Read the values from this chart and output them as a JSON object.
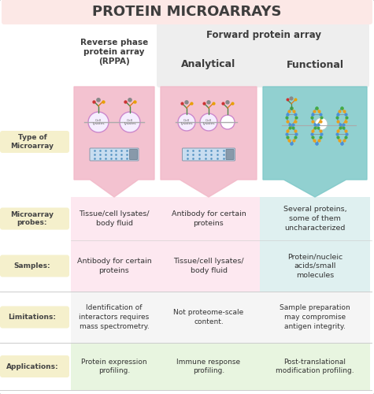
{
  "title": "PROTEIN MICROARRAYS",
  "col_headers": {
    "rppa": "Reverse phase\nprotein array\n(RPPA)",
    "forward": "Forward protein array",
    "analytical": "Analytical",
    "functional": "Functional"
  },
  "row_labels": {
    "type": "Type of\nMicroarray",
    "probes": "Microarray\nprobes:",
    "samples": "Samples:",
    "limitations": "Limitations:",
    "applications": "Applications:"
  },
  "cell_data": {
    "probes_rppa": "Tissue/cell lysates/\nbody fluid",
    "probes_analytical": "Antibody for certain\nproteins",
    "probes_functional": "Several proteins,\nsome of them\nuncharacterized",
    "samples_rppa": "Antibody for certain\nproteins",
    "samples_analytical": "Tissue/cell lysates/\nbody fluid",
    "samples_functional": "Protein/nucleic\nacids/small\nmolecules",
    "limitations_rppa": "Identification of\ninteractors requires\nmass spectrometry.",
    "limitations_analytical": "Not proteome-scale\ncontent.",
    "limitations_functional": "Sample preparation\nmay compromise\nantigen integrity.",
    "applications_rppa": "Protein expression\nprofiling.",
    "applications_analytical": "Immune response\nprofiling.",
    "applications_functional": "Post-translational\nmodification profiling."
  },
  "colors": {
    "bg": "#ffffff",
    "title_bg": "#fce8e6",
    "title_color": "#3d3d3d",
    "header_text": "#3d3d3d",
    "rppa_arrow": "#f2b8c8",
    "analytical_arrow": "#f2b8c8",
    "functional_arrow": "#7ec8c8",
    "rppa_col_bg": "#fde8f0",
    "analytical_col_bg": "#fde8f0",
    "functional_col_bg": "#dff0f0",
    "forward_header_bg": "#eeeeee",
    "label_bg": "#f5f0cc",
    "limitations_row_bg": "#f5f5f5",
    "applications_row_bg": "#e8f5e0",
    "divider": "#cccccc",
    "text_dark": "#333333",
    "text_label": "#444444"
  }
}
